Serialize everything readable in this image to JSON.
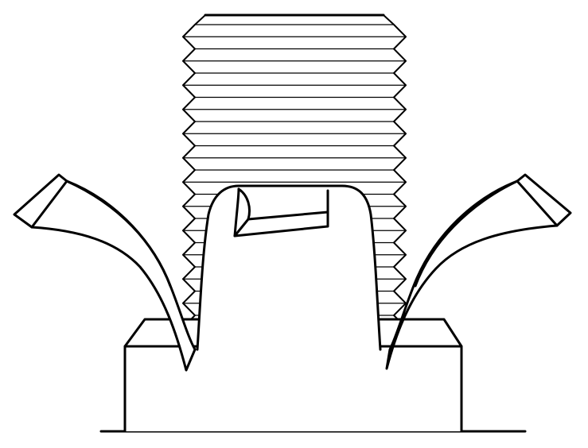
{
  "drawing": {
    "subject": "wing-nut-on-threaded-bolt",
    "colors": {
      "line": "#000000",
      "paper": "#ffffff",
      "shade": "#f2f2f2"
    }
  }
}
